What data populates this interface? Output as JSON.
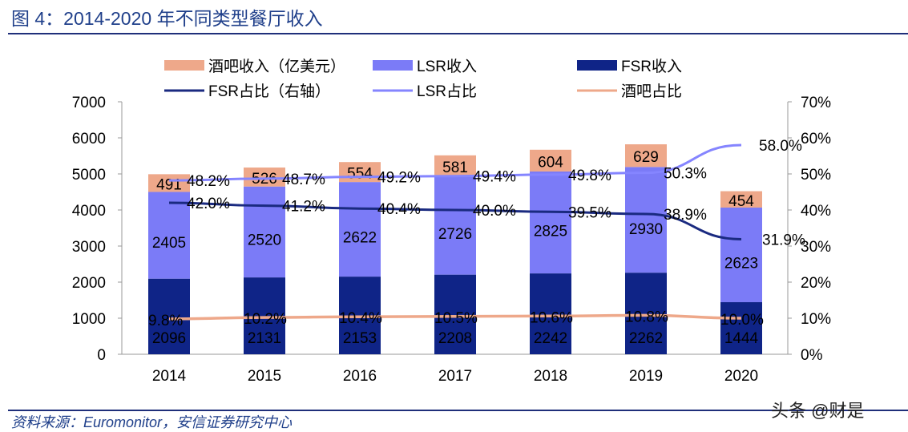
{
  "header": {
    "title": "图 4：2014-2020 年不同类型餐厅收入"
  },
  "footer": {
    "source": "资料来源：Euromonitor，安信证券研究中心",
    "watermark": "头条 @财是"
  },
  "colors": {
    "title": "#1f3f8a",
    "rule": "#1f2f7a",
    "pub": "#eea88a",
    "lsr": "#7b7bf7",
    "fsr": "#0f2487",
    "fsr_line": "#1a2a80",
    "lsr_line": "#8585ff",
    "pub_line": "#eea88a"
  },
  "chart_data": {
    "type": "bar",
    "stacked": true,
    "categories": [
      "2014",
      "2015",
      "2016",
      "2017",
      "2018",
      "2019",
      "2020"
    ],
    "series": [
      {
        "name": "FSR收入",
        "values": [
          2096,
          2131,
          2153,
          2208,
          2242,
          2262,
          1444
        ]
      },
      {
        "name": "LSR收入",
        "values": [
          2405,
          2520,
          2622,
          2726,
          2825,
          2930,
          2623
        ]
      },
      {
        "name": "酒吧收入（亿美元）",
        "values": [
          491,
          526,
          554,
          581,
          604,
          629,
          454
        ]
      }
    ],
    "line_series": [
      {
        "name": "FSR占比（右轴）",
        "values": [
          42.0,
          41.2,
          40.4,
          40.0,
          39.5,
          38.9,
          31.9
        ]
      },
      {
        "name": "LSR占比",
        "values": [
          48.2,
          48.7,
          49.2,
          49.4,
          49.8,
          50.3,
          58.0
        ]
      },
      {
        "name": "酒吧占比",
        "values": [
          9.8,
          10.2,
          10.4,
          10.5,
          10.6,
          10.8,
          10.0
        ]
      }
    ],
    "ylim": [
      0,
      7000
    ],
    "yticks": [
      "0",
      "1000",
      "2000",
      "3000",
      "4000",
      "5000",
      "6000",
      "7000"
    ],
    "y2lim": [
      0,
      70
    ],
    "y2ticks": [
      "0%",
      "10%",
      "20%",
      "30%",
      "40%",
      "50%",
      "60%",
      "70%"
    ],
    "legend": "top",
    "grid": false
  }
}
